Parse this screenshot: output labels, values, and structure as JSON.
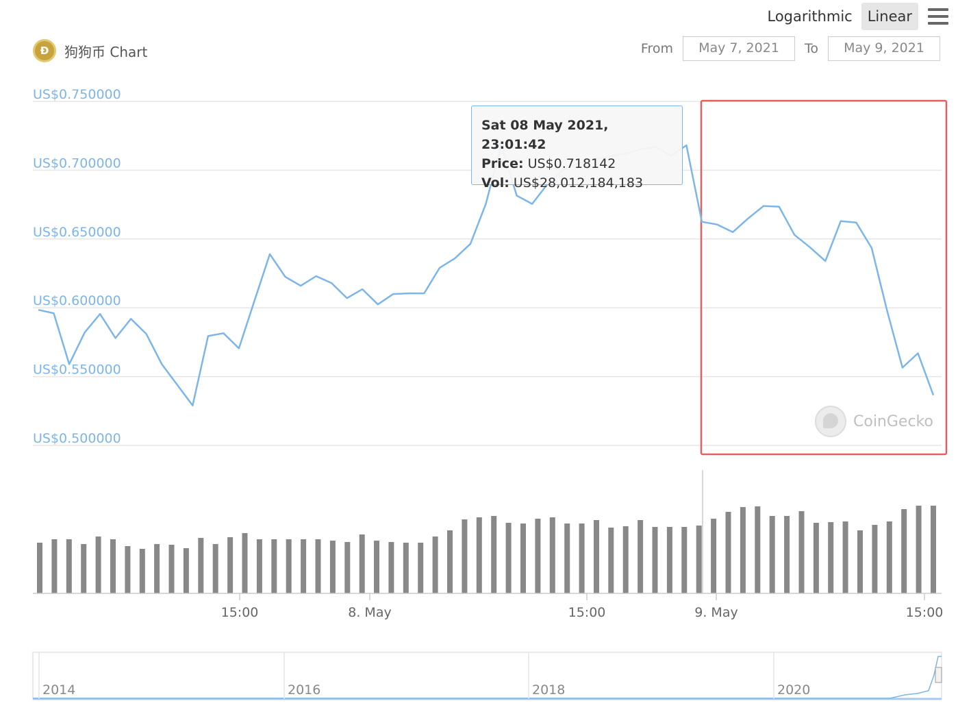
{
  "header": {
    "scale_options": [
      "Logarithmic",
      "Linear"
    ],
    "active_scale": "Linear",
    "title": "狗狗币 Chart",
    "from_label": "From",
    "from_value": "May 7, 2021",
    "to_label": "To",
    "to_value": "May 9, 2021"
  },
  "tooltip": {
    "date": "Sat 08 May 2021, 23:01:42",
    "price_label": "Price:",
    "price_value": "US$0.718142",
    "vol_label": "Vol:",
    "vol_value": "US$28,012,184,183"
  },
  "watermark": "CoinGecko",
  "colors": {
    "price_line": "#7cb5ec",
    "volume_bars": "#888888",
    "highlight_box": "#e06060",
    "axis_labels": "#7cb5ec"
  },
  "chart_data": [
    {
      "type": "line",
      "series": [
        {
          "name": "Price",
          "values": [
            0.5985,
            0.596,
            0.559,
            0.582,
            0.5955,
            0.578,
            0.592,
            0.581,
            0.559,
            0.544,
            0.529,
            0.5795,
            0.5815,
            0.5705,
            0.605,
            0.639,
            0.6225,
            0.616,
            0.623,
            0.618,
            0.607,
            0.6135,
            0.6025,
            0.61,
            0.6105,
            0.6105,
            0.629,
            0.636,
            0.6465,
            0.6755,
            0.7185,
            0.6815,
            0.6755,
            0.69,
            0.7,
            0.705,
            0.708,
            0.71,
            0.712,
            0.715,
            0.717,
            0.7105,
            0.7181,
            0.6625,
            0.6605,
            0.655,
            0.665,
            0.674,
            0.6735,
            0.653,
            0.644,
            0.634,
            0.663,
            0.662,
            0.6435,
            0.598,
            0.5565,
            0.567,
            0.5365
          ]
        }
      ],
      "yaxis_ticks": [
        "US$0.750000",
        "US$0.700000",
        "US$0.650000",
        "US$0.600000",
        "US$0.550000",
        "US$0.500000"
      ],
      "ylim": [
        0.5,
        0.75
      ],
      "grid": true,
      "highlight_region": "May 8, 23:01 – May 9, 15:00"
    },
    {
      "type": "bar",
      "series": [
        {
          "name": "Volume",
          "values": [
            74,
            79,
            79,
            72,
            83,
            79,
            69,
            65,
            72,
            71,
            66,
            81,
            72,
            82,
            88,
            79,
            79,
            79,
            79,
            79,
            77,
            75,
            86,
            77,
            75,
            74,
            74,
            83,
            92,
            108,
            111,
            113,
            103,
            102,
            109,
            111,
            102,
            102,
            107,
            96,
            98,
            107,
            97,
            97,
            97,
            99,
            109,
            119,
            126,
            127,
            113,
            113,
            120,
            103,
            104,
            105,
            92,
            100,
            105,
            123,
            128,
            128
          ]
        }
      ],
      "xaxis_ticks": [
        "15:00",
        "8. May",
        "15:00",
        "9. May",
        "15:00"
      ]
    },
    {
      "type": "area",
      "navigator_ticks": [
        "2014",
        "2016",
        "2018",
        "2020"
      ]
    }
  ]
}
